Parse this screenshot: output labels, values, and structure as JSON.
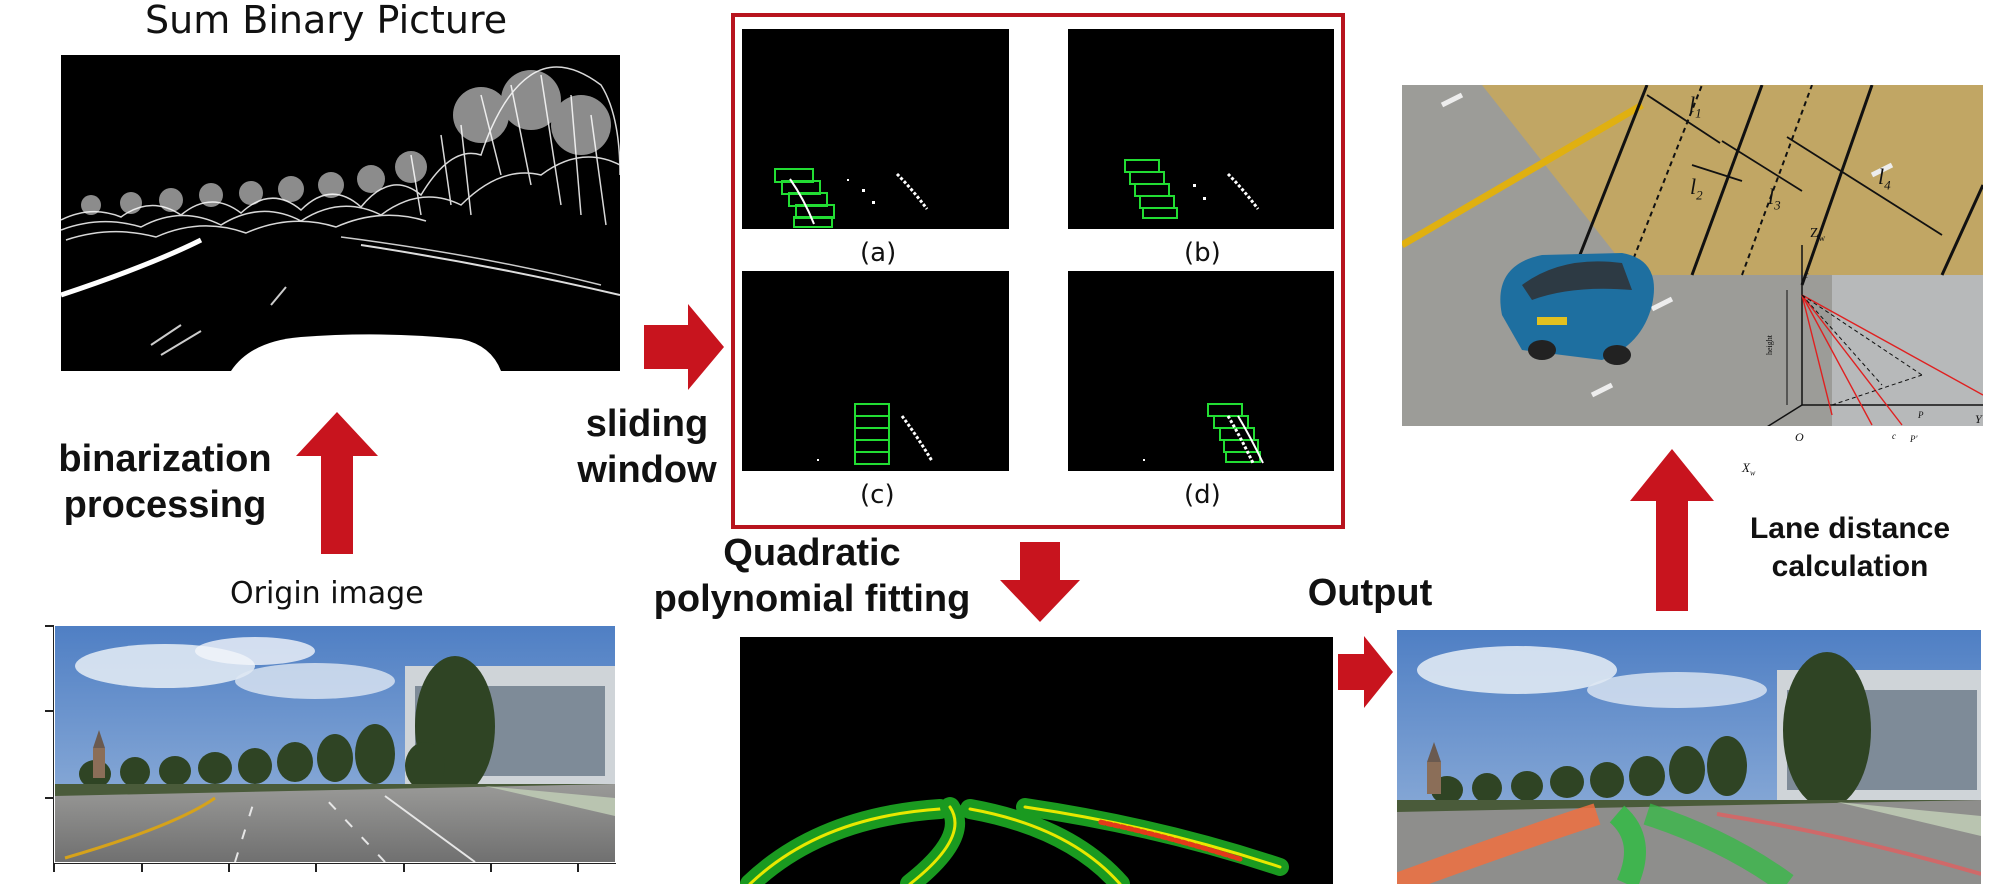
{
  "titles": {
    "sum_binary": "Sum Binary Picture",
    "origin": "Origin image"
  },
  "steps": {
    "binarization_1": "binarization",
    "binarization_2": "processing",
    "sliding_1": "sliding",
    "sliding_2": "window",
    "quadratic_1": "Quadratic",
    "quadratic_2": "polynomial fitting",
    "output": "Output",
    "lane_1": "Lane distance",
    "lane_2": "calculation"
  },
  "panels": [
    "(a)",
    "(b)",
    "(c)",
    "(d)"
  ],
  "diagram_labels": {
    "l1": "l",
    "l1_sub": "1",
    "l2": "l",
    "l2_sub": "2",
    "l3": "l",
    "l3_sub": "3",
    "l4": "l",
    "l4_sub": "4",
    "z_axis": "Z",
    "z_sub": "w",
    "x_axis": "X",
    "x_sub": "w",
    "y_axis": "Y",
    "origin": "O",
    "c_top": "c",
    "c_bottom": "c",
    "p": "P",
    "p_prime": "P'",
    "height": "height"
  },
  "colors": {
    "arrow_red": "#c8141e",
    "frame_red": "#b8141e",
    "window_green": "#22dd33",
    "lane_yellow": "#e8e800"
  }
}
